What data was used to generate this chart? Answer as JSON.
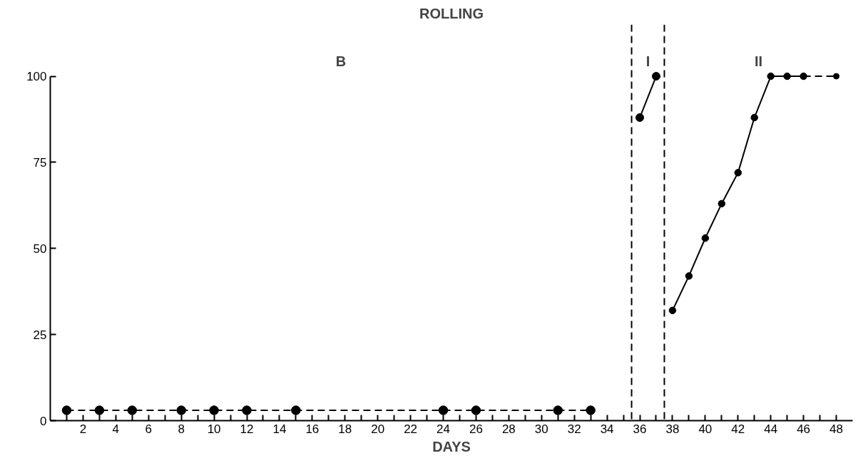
{
  "chart_data": {
    "type": "line",
    "title": "ROLLING",
    "xlabel": "DAYS",
    "annotations": [
      "B",
      "I",
      "II"
    ],
    "series": [
      {
        "color": "#000000",
        "line_style": "dashed",
        "x": [
          1,
          3,
          5,
          8,
          10,
          12,
          15,
          24,
          26,
          31,
          33
        ],
        "values": [
          3,
          3,
          3,
          3,
          3,
          3,
          3,
          3,
          3,
          3,
          3
        ]
      },
      {
        "color": "#000000",
        "line_style": "solid",
        "x": [
          36,
          37
        ],
        "values": [
          88,
          100
        ]
      },
      {
        "color": "#000000",
        "line_style": "solid",
        "x": [
          38,
          39,
          40,
          41,
          42,
          43,
          44,
          45,
          46
        ],
        "values": [
          32,
          42,
          53,
          63,
          72,
          88,
          100,
          100,
          100
        ]
      },
      {
        "color": "#000000",
        "line_style": "dashed",
        "x": [
          46,
          48
        ],
        "values": [
          100,
          100
        ]
      }
    ],
    "ref_lines": [
      {
        "axis": "x",
        "value": 35.5,
        "label": null,
        "color": "#000000",
        "line_style": "dashed"
      },
      {
        "axis": "x",
        "value": 37.5,
        "label": null,
        "color": "#000000",
        "line_style": "dashed"
      }
    ],
    "xlim": [
      0,
      49
    ],
    "ylim": [
      0,
      115
    ],
    "xticks": [
      {
        "value": 1,
        "label": null
      },
      2,
      {
        "value": 3,
        "label": null
      },
      4,
      {
        "value": 5,
        "label": null
      },
      6,
      {
        "value": 7,
        "label": null
      },
      8,
      {
        "value": 9,
        "label": null
      },
      10,
      {
        "value": 11,
        "label": null
      },
      12,
      {
        "value": 13,
        "label": null
      },
      14,
      {
        "value": 15,
        "label": null
      },
      16,
      {
        "value": 17,
        "label": null
      },
      18,
      {
        "value": 19,
        "label": null
      },
      20,
      {
        "value": 21,
        "label": null
      },
      22,
      {
        "value": 23,
        "label": null
      },
      24,
      {
        "value": 25,
        "label": null
      },
      26,
      {
        "value": 27,
        "label": null
      },
      28,
      {
        "value": 29,
        "label": null
      },
      30,
      {
        "value": 31,
        "label": null
      },
      32,
      {
        "value": 33,
        "label": null
      },
      34,
      {
        "value": 35,
        "label": null
      },
      36,
      {
        "value": 37,
        "label": null
      },
      38,
      {
        "value": 39,
        "label": null
      },
      40,
      {
        "value": 41,
        "label": null
      },
      42,
      {
        "value": 43,
        "label": null
      },
      44,
      {
        "value": 45,
        "label": null
      },
      46,
      {
        "value": 47,
        "label": null
      },
      48
    ],
    "yticks": [
      0,
      25,
      50,
      75,
      100
    ],
    "grid": false,
    "marker": "circle"
  }
}
